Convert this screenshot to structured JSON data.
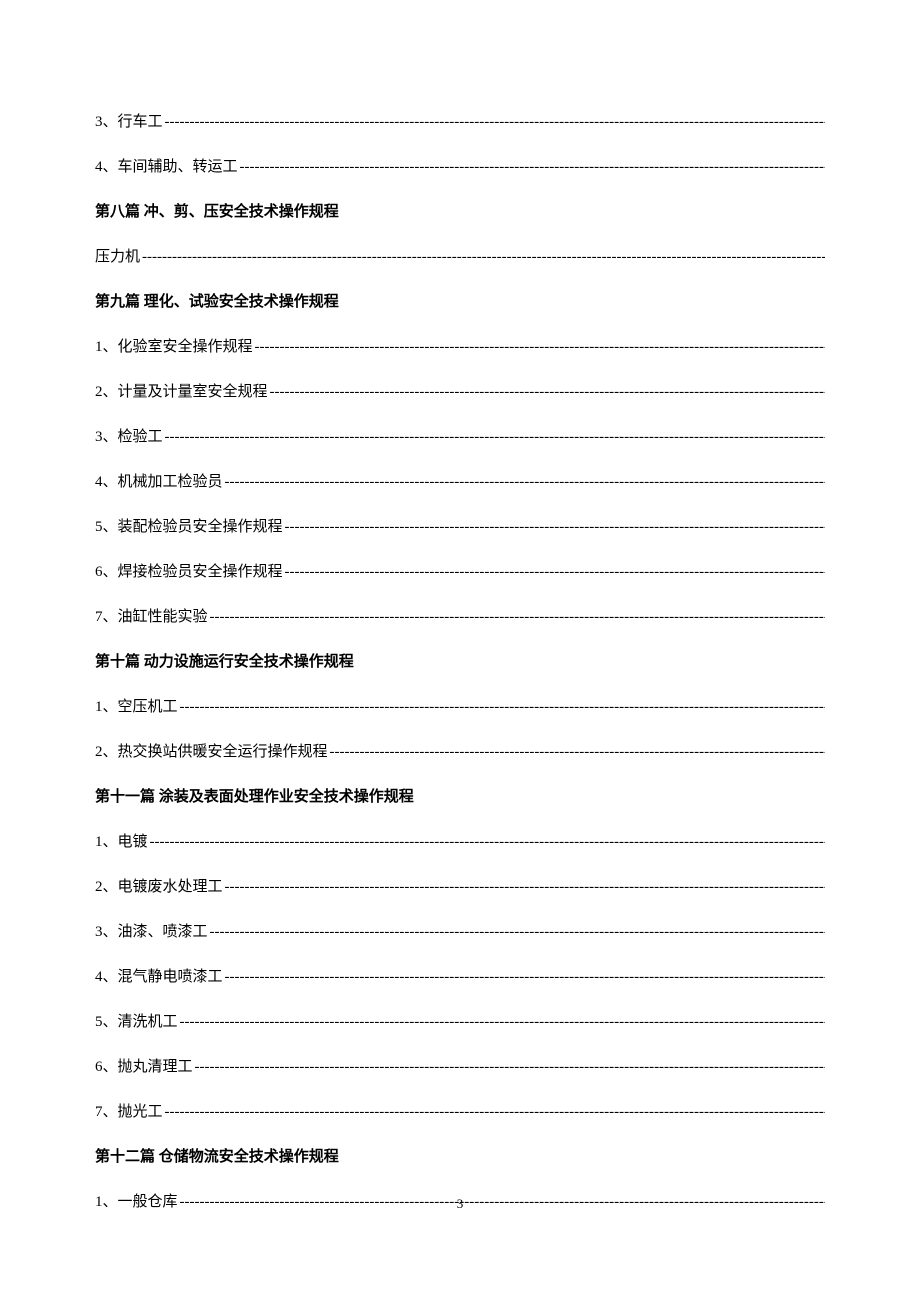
{
  "font_color": "#000000",
  "background_color": "#ffffff",
  "entry_fontsize": 15,
  "heading_fontsize": 15,
  "heading_fontweight": "bold",
  "line_spacing": 24,
  "page_number": "3",
  "entries": [
    {
      "type": "item",
      "label": "3、行车工"
    },
    {
      "type": "item",
      "label": "4、车间辅助、转运工"
    },
    {
      "type": "heading",
      "label": "第八篇 冲、剪、压安全技术操作规程"
    },
    {
      "type": "item",
      "label": "压力机"
    },
    {
      "type": "heading",
      "label": "第九篇 理化、试验安全技术操作规程"
    },
    {
      "type": "item",
      "label": "1、化验室安全操作规程"
    },
    {
      "type": "item",
      "label": "2、计量及计量室安全规程"
    },
    {
      "type": "item",
      "label": "3、检验工"
    },
    {
      "type": "item",
      "label": "4、机械加工检验员"
    },
    {
      "type": "item",
      "label": "5、装配检验员安全操作规程"
    },
    {
      "type": "item",
      "label": "6、焊接检验员安全操作规程"
    },
    {
      "type": "item",
      "label": "7、油缸性能实验"
    },
    {
      "type": "heading",
      "label": "第十篇 动力设施运行安全技术操作规程"
    },
    {
      "type": "item",
      "label": "1、空压机工"
    },
    {
      "type": "item",
      "label": "2、热交换站供暖安全运行操作规程"
    },
    {
      "type": "heading",
      "label": "第十一篇 涂装及表面处理作业安全技术操作规程"
    },
    {
      "type": "item",
      "label": "1、电镀"
    },
    {
      "type": "item",
      "label": "2、电镀废水处理工"
    },
    {
      "type": "item",
      "label": "3、油漆、喷漆工"
    },
    {
      "type": "item",
      "label": "4、混气静电喷漆工"
    },
    {
      "type": "item",
      "label": "5、清洗机工"
    },
    {
      "type": "item",
      "label": "6、抛丸清理工"
    },
    {
      "type": "item",
      "label": "7、抛光工"
    },
    {
      "type": "heading",
      "label": "第十二篇 仓储物流安全技术操作规程"
    },
    {
      "type": "item",
      "label": "1、一般仓库"
    }
  ]
}
